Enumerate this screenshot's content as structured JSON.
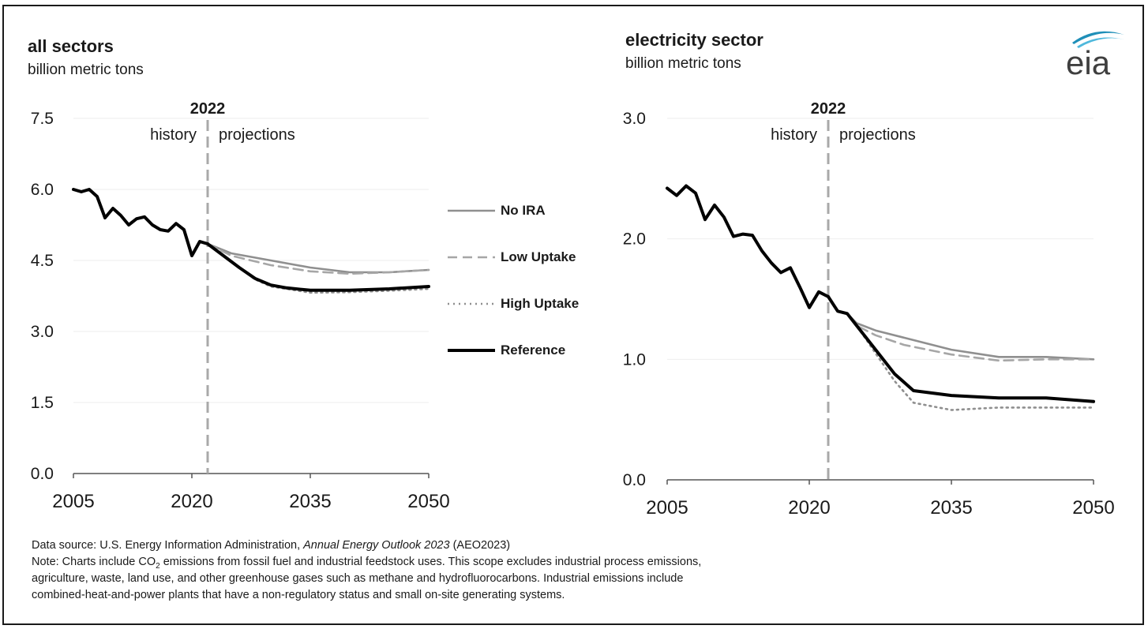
{
  "logo": {
    "text": "eia",
    "icon": "eia-logo"
  },
  "footer": {
    "source_prefix": "Data source: U.S. Energy Information Administration, ",
    "source_title": "Annual Energy Outlook 2023",
    "source_suffix": " (AEO2023)",
    "note_1a": "Note: Charts include CO",
    "note_1sub": "2",
    "note_1b": " emissions from fossil fuel and industrial feedstock uses. This scope excludes industrial process emissions,",
    "note_2": "agriculture, waste, land use, and other greenhouse gases such as methane and hydrofluorocarbons. Industrial emissions include",
    "note_3": "combined-heat-and-power plants that have a non-regulatory status and small on-site generating systems."
  },
  "legend": [
    {
      "label": "No IRA",
      "style": "solid",
      "color": "#8f8f8f"
    },
    {
      "label": "Low Uptake",
      "style": "dashed",
      "color": "#a6a6a6"
    },
    {
      "label": "High Uptake",
      "style": "dotted",
      "color": "#8f8f8f"
    },
    {
      "label": "Reference",
      "style": "solid-bold",
      "color": "#000000"
    }
  ],
  "chart_data": [
    {
      "type": "line",
      "title": "all sectors",
      "subtitle": "billion metric tons",
      "xlim": [
        2005,
        2050
      ],
      "ylim": [
        0,
        7.5
      ],
      "xticks": [
        "2005",
        "2020",
        "2035",
        "2050"
      ],
      "yticks": [
        "0.0",
        "1.5",
        "3.0",
        "4.5",
        "6.0",
        "7.5"
      ],
      "marker": {
        "x": 2022,
        "label": "2022",
        "left_label": "history",
        "right_label": "projections"
      },
      "history": {
        "x": [
          2005,
          2006,
          2007,
          2008,
          2009,
          2010,
          2011,
          2012,
          2013,
          2014,
          2015,
          2016,
          2017,
          2018,
          2019,
          2020,
          2021,
          2022
        ],
        "y": [
          6.0,
          5.95,
          6.0,
          5.85,
          5.4,
          5.6,
          5.45,
          5.25,
          5.38,
          5.42,
          5.25,
          5.15,
          5.12,
          5.28,
          5.15,
          4.6,
          4.9,
          4.85
        ]
      },
      "series": [
        {
          "name": "No IRA",
          "x": [
            2022,
            2025,
            2030,
            2035,
            2040,
            2045,
            2050
          ],
          "y": [
            4.85,
            4.65,
            4.5,
            4.35,
            4.25,
            4.25,
            4.3
          ]
        },
        {
          "name": "Low Uptake",
          "x": [
            2022,
            2025,
            2030,
            2035,
            2040,
            2045,
            2050
          ],
          "y": [
            4.85,
            4.6,
            4.4,
            4.27,
            4.22,
            4.25,
            4.3
          ]
        },
        {
          "name": "High Uptake",
          "x": [
            2022,
            2024,
            2026,
            2028,
            2030,
            2035,
            2040,
            2045,
            2050
          ],
          "y": [
            4.85,
            4.6,
            4.35,
            4.1,
            3.95,
            3.82,
            3.83,
            3.86,
            3.9
          ]
        },
        {
          "name": "Reference",
          "x": [
            2022,
            2024,
            2026,
            2028,
            2030,
            2032,
            2035,
            2040,
            2045,
            2050
          ],
          "y": [
            4.85,
            4.6,
            4.35,
            4.12,
            3.98,
            3.92,
            3.87,
            3.87,
            3.9,
            3.95
          ]
        }
      ]
    },
    {
      "type": "line",
      "title": "electricity sector",
      "subtitle": "billion metric tons",
      "xlim": [
        2005,
        2050
      ],
      "ylim": [
        0,
        3.0
      ],
      "xticks": [
        "2005",
        "2020",
        "2035",
        "2050"
      ],
      "yticks": [
        "0.0",
        "1.0",
        "2.0",
        "3.0"
      ],
      "marker": {
        "x": 2022,
        "label": "2022",
        "left_label": "history",
        "right_label": "projections"
      },
      "history": {
        "x": [
          2005,
          2006,
          2007,
          2008,
          2009,
          2010,
          2011,
          2012,
          2013,
          2014,
          2015,
          2016,
          2017,
          2018,
          2019,
          2020,
          2021,
          2022
        ],
        "y": [
          2.42,
          2.36,
          2.44,
          2.38,
          2.16,
          2.28,
          2.18,
          2.02,
          2.04,
          2.03,
          1.9,
          1.8,
          1.72,
          1.76,
          1.6,
          1.43,
          1.56,
          1.52
        ]
      },
      "series": [
        {
          "name": "No IRA",
          "x": [
            2022,
            2023,
            2024,
            2025,
            2027,
            2030,
            2035,
            2040,
            2045,
            2050
          ],
          "y": [
            1.52,
            1.4,
            1.38,
            1.3,
            1.24,
            1.18,
            1.08,
            1.02,
            1.02,
            1.0
          ]
        },
        {
          "name": "Low Uptake",
          "x": [
            2022,
            2023,
            2024,
            2025,
            2027,
            2030,
            2035,
            2040,
            2045,
            2050
          ],
          "y": [
            1.52,
            1.4,
            1.38,
            1.28,
            1.2,
            1.12,
            1.04,
            0.99,
            1.0,
            1.0
          ]
        },
        {
          "name": "High Uptake",
          "x": [
            2022,
            2023,
            2024,
            2025,
            2027,
            2029,
            2031,
            2035,
            2040,
            2045,
            2050
          ],
          "y": [
            1.52,
            1.4,
            1.38,
            1.28,
            1.05,
            0.82,
            0.64,
            0.58,
            0.6,
            0.6,
            0.6
          ]
        },
        {
          "name": "Reference",
          "x": [
            2022,
            2023,
            2024,
            2025,
            2027,
            2029,
            2031,
            2035,
            2040,
            2045,
            2050
          ],
          "y": [
            1.52,
            1.4,
            1.38,
            1.28,
            1.08,
            0.88,
            0.74,
            0.7,
            0.68,
            0.68,
            0.65
          ]
        }
      ]
    }
  ]
}
